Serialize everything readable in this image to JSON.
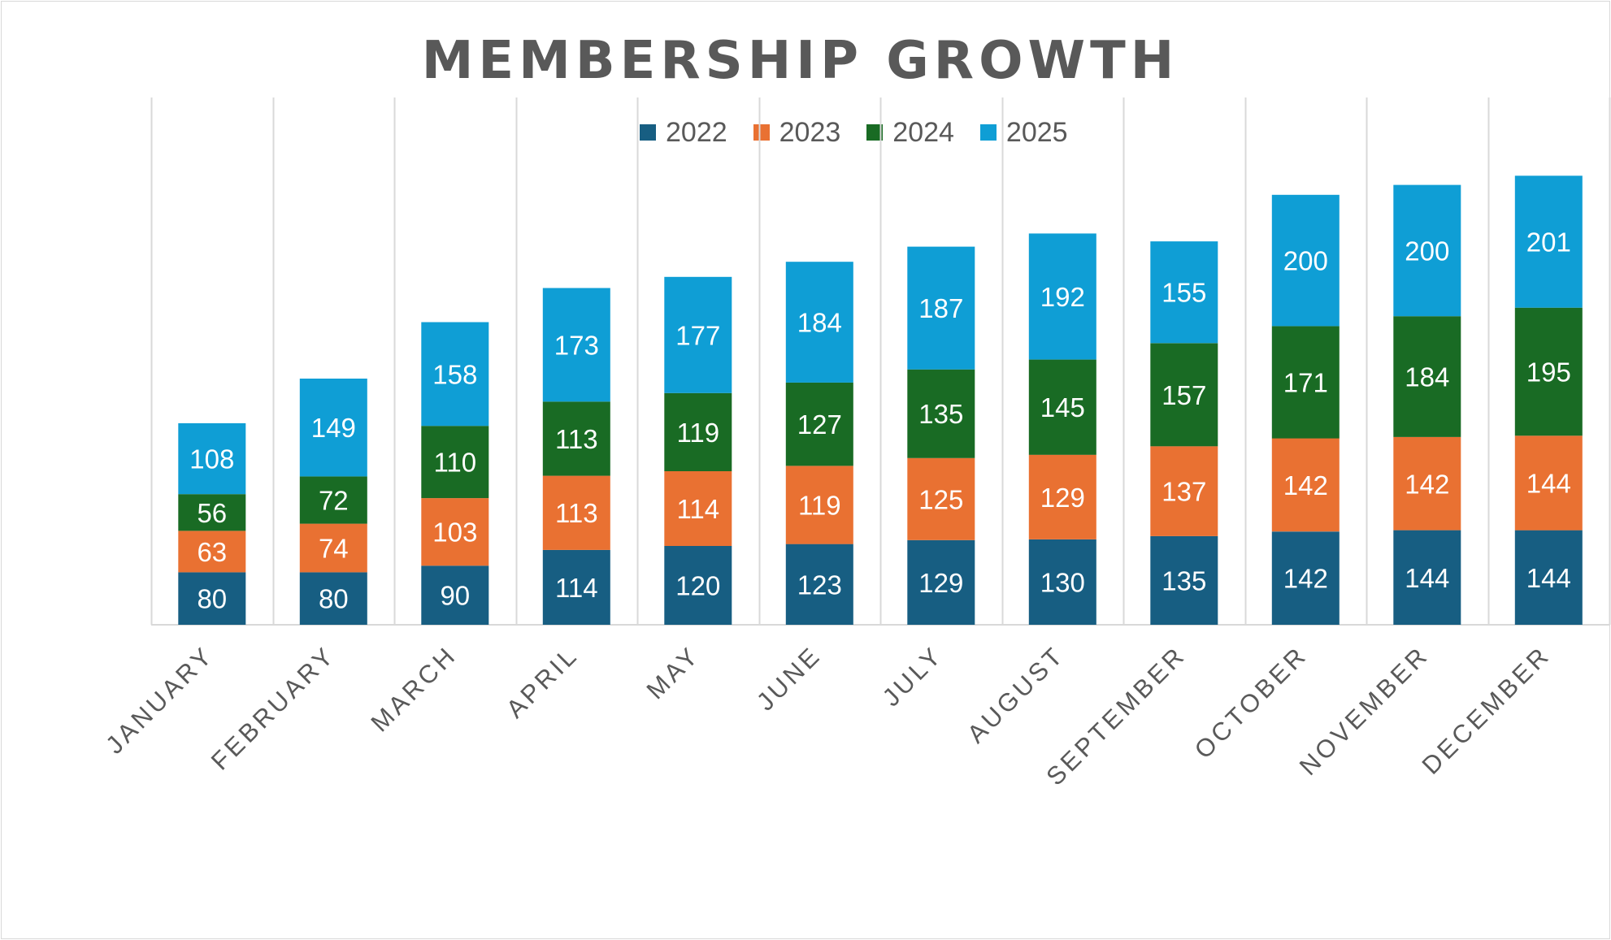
{
  "chart_data": {
    "type": "bar",
    "stacked": true,
    "title": "MEMBERSHIP GROWTH",
    "xlabel": "",
    "ylabel": "",
    "ylim": [
      0,
      700
    ],
    "grid": "vertical",
    "legend_position": "top",
    "categories": [
      "JANUARY",
      "FEBRUARY",
      "MARCH",
      "APRIL",
      "MAY",
      "JUNE",
      "JULY",
      "AUGUST",
      "SEPTEMBER",
      "OCTOBER",
      "NOVEMBER",
      "DECEMBER"
    ],
    "series": [
      {
        "name": "2022",
        "color": "#175e82",
        "values": [
          80,
          80,
          90,
          114,
          120,
          123,
          129,
          130,
          135,
          142,
          144,
          144
        ]
      },
      {
        "name": "2023",
        "color": "#e97132",
        "values": [
          63,
          74,
          103,
          113,
          114,
          119,
          125,
          129,
          137,
          142,
          142,
          144
        ]
      },
      {
        "name": "2024",
        "color": "#196b24",
        "values": [
          56,
          72,
          110,
          113,
          119,
          127,
          135,
          145,
          157,
          171,
          184,
          195
        ]
      },
      {
        "name": "2025",
        "color": "#0f9ed5",
        "values": [
          108,
          149,
          158,
          173,
          177,
          184,
          187,
          192,
          155,
          200,
          200,
          201
        ]
      }
    ]
  }
}
